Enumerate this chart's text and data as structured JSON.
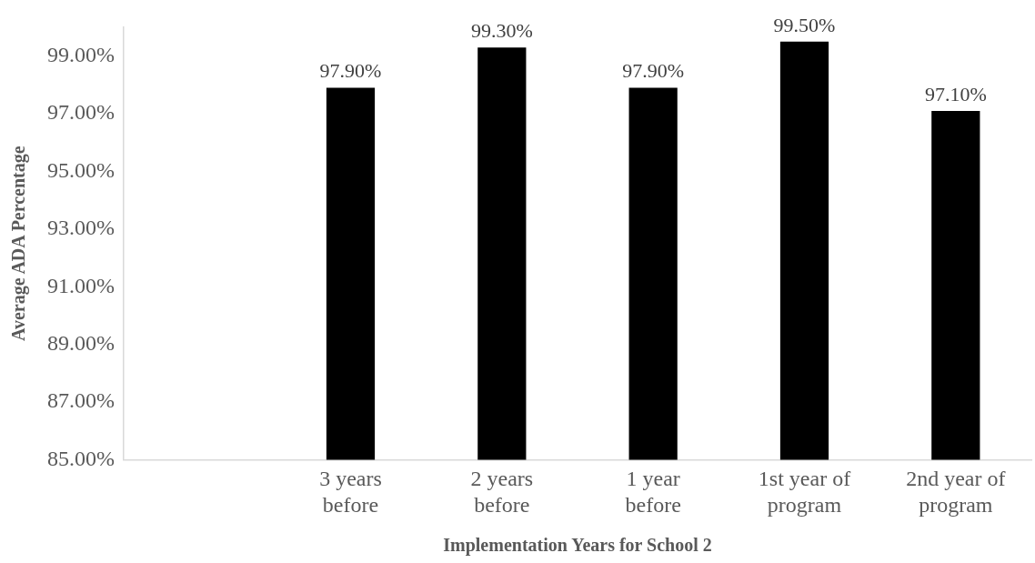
{
  "chart_data": {
    "type": "bar",
    "xlabel": "Implementation Years for School 2",
    "ylabel": "Average ADA Percentage",
    "categories": [
      null,
      "3 years\nbefore",
      "2 years\nbefore",
      "1 year\nbefore",
      "1st year of\nprogram",
      "2nd year of\nprogram"
    ],
    "values": [
      null,
      97.9,
      99.3,
      97.9,
      99.5,
      97.1
    ],
    "value_labels": [
      null,
      "97.90%",
      "99.30%",
      "97.90%",
      "99.50%",
      "97.10%"
    ],
    "color": "#000000",
    "yticks": [
      {
        "value": 85,
        "label": "85.00%"
      },
      {
        "value": 87,
        "label": "87.00%"
      },
      {
        "value": 89,
        "label": "89.00%"
      },
      {
        "value": 91,
        "label": "91.00%"
      },
      {
        "value": 93,
        "label": "93.00%"
      },
      {
        "value": 95,
        "label": "95.00%"
      },
      {
        "value": 97,
        "label": "97.00%"
      },
      {
        "value": 99,
        "label": "99.00%"
      }
    ],
    "ylim": [
      85,
      100
    ],
    "grid": false,
    "legend": false
  }
}
